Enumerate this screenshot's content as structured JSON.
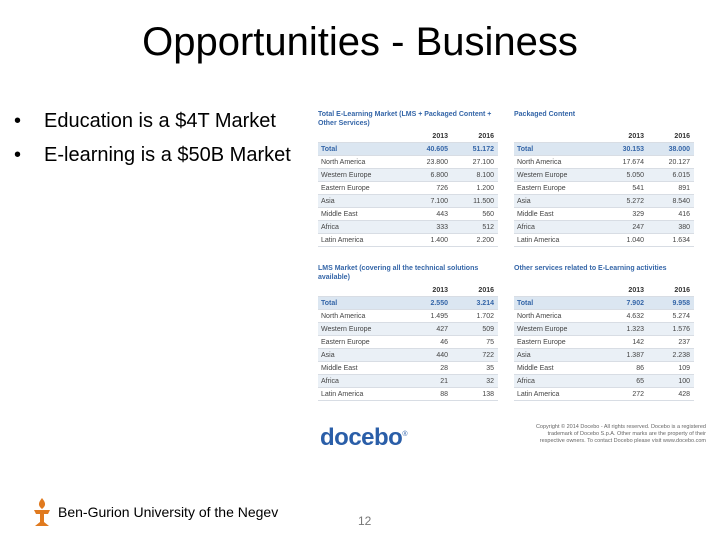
{
  "title": "Opportunities - Business",
  "bullets": [
    {
      "marker": "•",
      "text": "Education is a $4T Market"
    },
    {
      "marker": "•",
      "text": "E-learning is a $50B Market"
    }
  ],
  "figure": {
    "tables": [
      {
        "title": "Total E-Learning Market (LMS + Packaged Content + Other Services)",
        "columns": [
          "",
          "2013",
          "2016"
        ],
        "rows": [
          [
            "Total",
            "40.605",
            "51.172"
          ],
          [
            "North America",
            "23.800",
            "27.100"
          ],
          [
            "Western Europe",
            "6.800",
            "8.100"
          ],
          [
            "Eastern Europe",
            "726",
            "1.200"
          ],
          [
            "Asia",
            "7.100",
            "11.500"
          ],
          [
            "Middle East",
            "443",
            "560"
          ],
          [
            "Africa",
            "333",
            "512"
          ],
          [
            "Latin America",
            "1.400",
            "2.200"
          ]
        ]
      },
      {
        "title": "Packaged Content",
        "columns": [
          "",
          "2013",
          "2016"
        ],
        "rows": [
          [
            "Total",
            "30.153",
            "38.000"
          ],
          [
            "North America",
            "17.674",
            "20.127"
          ],
          [
            "Western Europe",
            "5.050",
            "6.015"
          ],
          [
            "Eastern Europe",
            "541",
            "891"
          ],
          [
            "Asia",
            "5.272",
            "8.540"
          ],
          [
            "Middle East",
            "329",
            "416"
          ],
          [
            "Africa",
            "247",
            "380"
          ],
          [
            "Latin America",
            "1.040",
            "1.634"
          ]
        ]
      },
      {
        "title": "LMS Market (covering all the technical solutions available)",
        "columns": [
          "",
          "2013",
          "2016"
        ],
        "rows": [
          [
            "Total",
            "2.550",
            "3.214"
          ],
          [
            "North America",
            "1.495",
            "1.702"
          ],
          [
            "Western Europe",
            "427",
            "509"
          ],
          [
            "Eastern Europe",
            "46",
            "75"
          ],
          [
            "Asia",
            "440",
            "722"
          ],
          [
            "Middle East",
            "28",
            "35"
          ],
          [
            "Africa",
            "21",
            "32"
          ],
          [
            "Latin America",
            "88",
            "138"
          ]
        ]
      },
      {
        "title": "Other services related to E-Learning activities",
        "columns": [
          "",
          "2013",
          "2016"
        ],
        "rows": [
          [
            "Total",
            "7.902",
            "9.958"
          ],
          [
            "North America",
            "4.632",
            "5.274"
          ],
          [
            "Western Europe",
            "1.323",
            "1.576"
          ],
          [
            "Eastern Europe",
            "142",
            "237"
          ],
          [
            "Asia",
            "1.387",
            "2.238"
          ],
          [
            "Middle East",
            "86",
            "109"
          ],
          [
            "Africa",
            "65",
            "100"
          ],
          [
            "Latin America",
            "272",
            "428"
          ]
        ]
      }
    ],
    "logo_text": "docebo",
    "logo_mark": "®",
    "copyright": "Copyright © 2014 Docebo - All rights reserved. Docebo is a registered trademark of Docebo S.p.A. Other marks are the property of their respective owners. To contact Docebo please visit www.docebo.com"
  },
  "footer": {
    "institution": "Ben-Gurion University of the Negev",
    "page_number": "12"
  },
  "colors": {
    "table_title": "#3566a8",
    "row_stripe": "#eaf0f6",
    "logo": "#2a5ea8",
    "footer_logo": "#e07a1f"
  }
}
